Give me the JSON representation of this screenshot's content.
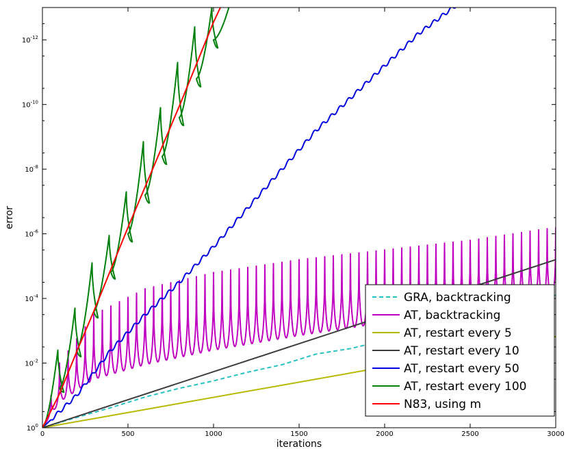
{
  "chart_data": {
    "type": "line",
    "xlabel": "iterations",
    "ylabel": "error",
    "xlim": [
      0,
      3000
    ],
    "ylim_log10": [
      -13,
      0
    ],
    "yscale": "log",
    "grid": false,
    "legend_position": "bottom-right",
    "x_ticks": [
      0,
      500,
      1000,
      1500,
      2000,
      2500,
      3000
    ],
    "y_ticks_exponent": [
      0,
      -2,
      -4,
      -6,
      -8,
      -10,
      -12
    ],
    "y_tick_base": "10",
    "series": [
      {
        "name": "GRA, backtracking",
        "color": "#26c2c2",
        "dashed": true,
        "points": [
          [
            0,
            0
          ],
          [
            200,
            -0.32
          ],
          [
            400,
            -0.62
          ],
          [
            600,
            -0.95
          ],
          [
            800,
            -1.22
          ],
          [
            1000,
            -1.45
          ],
          [
            1200,
            -1.72
          ],
          [
            1400,
            -1.95
          ],
          [
            1600,
            -2.28
          ],
          [
            1800,
            -2.45
          ],
          [
            2000,
            -2.7
          ],
          [
            2200,
            -3.0
          ],
          [
            2400,
            -3.3
          ],
          [
            2600,
            -3.58
          ],
          [
            2800,
            -3.85
          ],
          [
            3000,
            -4.1
          ]
        ]
      },
      {
        "name": "AT, backtracking",
        "color": "#c000c0",
        "envelope_upper": [
          [
            0,
            0
          ],
          [
            100,
            -0.8
          ],
          [
            300,
            -1.5
          ],
          [
            600,
            -1.95
          ],
          [
            1000,
            -2.4
          ],
          [
            1500,
            -2.85
          ],
          [
            2000,
            -3.25
          ],
          [
            2500,
            -3.65
          ],
          [
            3000,
            -4.0
          ]
        ],
        "envelope_lower": [
          [
            0,
            0
          ],
          [
            100,
            -2.0
          ],
          [
            300,
            -3.5
          ],
          [
            600,
            -4.3
          ],
          [
            1000,
            -4.8
          ],
          [
            1500,
            -5.2
          ],
          [
            2000,
            -5.5
          ],
          [
            2500,
            -5.8
          ],
          [
            3000,
            -6.2
          ]
        ],
        "oscillation_period": 50
      },
      {
        "name": "AT, restart every 5",
        "color": "#b8b800",
        "points": [
          [
            0,
            0
          ],
          [
            3000,
            -2.82
          ]
        ]
      },
      {
        "name": "AT, restart every 10",
        "color": "#3c3c3c",
        "points": [
          [
            0,
            0
          ],
          [
            3000,
            -5.2
          ]
        ]
      },
      {
        "name": "AT, restart every 50",
        "color": "#0000e0",
        "points": [
          [
            0,
            0
          ],
          [
            200,
            -1.0
          ],
          [
            400,
            -2.4
          ],
          [
            600,
            -3.5
          ],
          [
            800,
            -4.5
          ],
          [
            1000,
            -5.6
          ],
          [
            1200,
            -6.8
          ],
          [
            1400,
            -8.0
          ],
          [
            1600,
            -9.2
          ],
          [
            1800,
            -10.2
          ],
          [
            2000,
            -11.2
          ],
          [
            2200,
            -12.2
          ],
          [
            2400,
            -13.0
          ]
        ]
      },
      {
        "name": "AT, restart every 100",
        "color": "#00800a",
        "restart_interval": 100,
        "restart_points": [
          [
            0,
            0
          ],
          [
            100,
            -1.22
          ],
          [
            200,
            -2.4
          ],
          [
            300,
            -3.6
          ],
          [
            400,
            -4.82
          ],
          [
            500,
            -6.0
          ],
          [
            600,
            -7.2
          ],
          [
            700,
            -8.4
          ],
          [
            800,
            -9.6
          ],
          [
            900,
            -10.8
          ],
          [
            1000,
            -12.0
          ],
          [
            1100,
            -13.2
          ]
        ],
        "peaks": [
          [
            125,
            -1.1
          ],
          [
            225,
            -2.2
          ],
          [
            325,
            -3.4
          ],
          [
            425,
            -4.6
          ],
          [
            525,
            -5.75
          ],
          [
            625,
            -6.95
          ],
          [
            725,
            -8.15
          ],
          [
            825,
            -9.35
          ],
          [
            925,
            -10.55
          ],
          [
            1025,
            -11.75
          ]
        ],
        "dips": [
          [
            90,
            -2.4
          ],
          [
            190,
            -3.7
          ],
          [
            290,
            -5.1
          ],
          [
            390,
            -5.95
          ],
          [
            490,
            -7.3
          ],
          [
            590,
            -8.85
          ],
          [
            690,
            -9.9
          ],
          [
            790,
            -11.3
          ],
          [
            890,
            -12.4
          ],
          [
            990,
            -13.0
          ]
        ]
      },
      {
        "name": "N83, using m",
        "color": "#ff0000",
        "points": [
          [
            0,
            0
          ],
          [
            100,
            -1.05
          ],
          [
            200,
            -2.35
          ],
          [
            300,
            -3.6
          ],
          [
            400,
            -4.9
          ],
          [
            500,
            -6.2
          ],
          [
            600,
            -7.45
          ],
          [
            700,
            -8.7
          ],
          [
            800,
            -9.95
          ],
          [
            900,
            -11.25
          ],
          [
            1000,
            -12.55
          ],
          [
            1040,
            -13.0
          ]
        ]
      }
    ]
  }
}
